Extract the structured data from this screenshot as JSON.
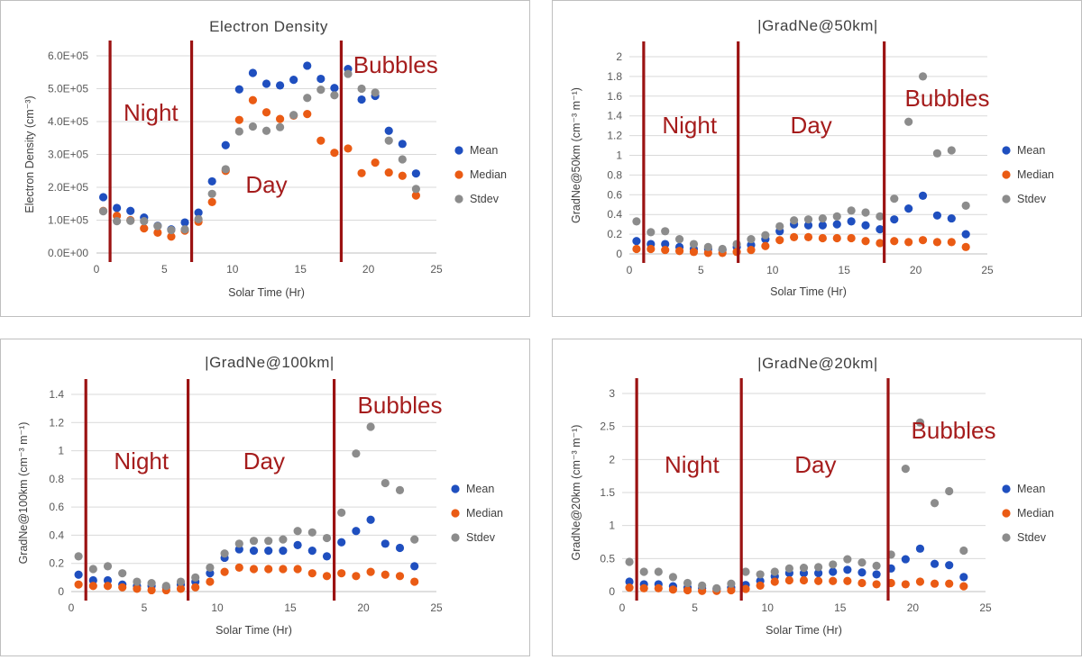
{
  "colors": {
    "mean": "#1f4fbf",
    "median": "#ea5b14",
    "stdev": "#8c8c8c",
    "divider": "#9b1212",
    "region": "#a51c1c",
    "grid": "#d9d9d9"
  },
  "chart_data": [
    {
      "type": "scatter",
      "title": "Electron Density",
      "xlabel": "Solar Time (Hr)",
      "ylabel": "Electron Density (cm⁻³)",
      "xlim": [
        0,
        25
      ],
      "ylim": [
        0,
        600000
      ],
      "xticks": [
        "0",
        "5",
        "10",
        "15",
        "20",
        "25"
      ],
      "yticks": [
        "0.0E+00",
        "1.0E+05",
        "2.0E+05",
        "3.0E+05",
        "4.0E+05",
        "5.0E+05",
        "6.0E+05"
      ],
      "dividers": [
        1,
        7,
        18
      ],
      "regions": [
        {
          "label": "Night",
          "x": 4
        },
        {
          "label": "Day",
          "x": 12.5
        },
        {
          "label": "Bubbles",
          "x": 22
        }
      ],
      "x": [
        0.5,
        1.5,
        2.5,
        3.5,
        4.5,
        5.5,
        6.5,
        7.5,
        8.5,
        9.5,
        10.5,
        11.5,
        12.5,
        13.5,
        14.5,
        15.5,
        16.5,
        17.5,
        18.5,
        19.5,
        20.5,
        21.5,
        22.5,
        23.5
      ],
      "series": [
        {
          "name": "Mean",
          "values": [
            170000,
            137000,
            128000,
            108000,
            83000,
            72000,
            93000,
            123000,
            218000,
            328000,
            498000,
            548000,
            515000,
            510000,
            527000,
            570000,
            530000,
            502000,
            560000,
            467000,
            478000,
            372000,
            332000,
            242000
          ]
        },
        {
          "name": "Median",
          "values": [
            128000,
            113000,
            100000,
            75000,
            62000,
            50000,
            68000,
            95000,
            155000,
            250000,
            405000,
            465000,
            428000,
            408000,
            418000,
            423000,
            342000,
            305000,
            318000,
            243000,
            275000,
            245000,
            235000,
            175000
          ]
        },
        {
          "name": "Stdev",
          "values": [
            127000,
            97000,
            98000,
            97000,
            82000,
            70000,
            72000,
            103000,
            180000,
            255000,
            370000,
            385000,
            372000,
            383000,
            420000,
            472000,
            497000,
            480000,
            545000,
            500000,
            488000,
            342000,
            285000,
            195000
          ]
        }
      ]
    },
    {
      "type": "scatter",
      "title": "|GradNe@50km|",
      "xlabel": "Solar Time (Hr)",
      "ylabel": "GradNe@50km (cm⁻³ m⁻¹)",
      "xlim": [
        0,
        25
      ],
      "ylim": [
        0,
        2
      ],
      "xticks": [
        "0",
        "5",
        "10",
        "15",
        "20",
        "25"
      ],
      "yticks": [
        "0",
        "0.2",
        "0.4",
        "0.6",
        "0.8",
        "1",
        "1.2",
        "1.4",
        "1.6",
        "1.8",
        "2"
      ],
      "dividers": [
        1,
        7.6,
        17.8
      ],
      "regions": [
        {
          "label": "Night",
          "x": 4.2
        },
        {
          "label": "Day",
          "x": 12.7
        },
        {
          "label": "Bubbles",
          "x": 22.2
        }
      ],
      "x": [
        0.5,
        1.5,
        2.5,
        3.5,
        4.5,
        5.5,
        6.5,
        7.5,
        8.5,
        9.5,
        10.5,
        11.5,
        12.5,
        13.5,
        14.5,
        15.5,
        16.5,
        17.5,
        18.5,
        19.5,
        20.5,
        21.5,
        22.5,
        23.5
      ],
      "series": [
        {
          "name": "Mean",
          "values": [
            0.13,
            0.1,
            0.1,
            0.07,
            0.05,
            0.05,
            0.04,
            0.07,
            0.09,
            0.15,
            0.23,
            0.3,
            0.29,
            0.29,
            0.3,
            0.33,
            0.29,
            0.25,
            0.35,
            0.46,
            0.59,
            0.39,
            0.36,
            0.2
          ]
        },
        {
          "name": "Median",
          "values": [
            0.05,
            0.05,
            0.04,
            0.03,
            0.02,
            0.01,
            0.01,
            0.02,
            0.04,
            0.08,
            0.14,
            0.17,
            0.17,
            0.16,
            0.16,
            0.16,
            0.13,
            0.11,
            0.13,
            0.12,
            0.14,
            0.12,
            0.12,
            0.07
          ]
        },
        {
          "name": "Stdev",
          "values": [
            0.33,
            0.22,
            0.23,
            0.15,
            0.1,
            0.07,
            0.05,
            0.1,
            0.15,
            0.19,
            0.28,
            0.34,
            0.35,
            0.36,
            0.38,
            0.44,
            0.42,
            0.38,
            0.56,
            1.34,
            1.8,
            1.02,
            1.05,
            0.49
          ]
        }
      ]
    },
    {
      "type": "scatter",
      "title": "|GradNe@100km|",
      "xlabel": "Solar Time (Hr)",
      "ylabel": "GradNe@100km (cm⁻³ m⁻¹)",
      "xlim": [
        0,
        25
      ],
      "ylim": [
        0,
        1.4
      ],
      "xticks": [
        "0",
        "5",
        "10",
        "15",
        "20",
        "25"
      ],
      "yticks": [
        "0",
        "0.2",
        "0.4",
        "0.6",
        "0.8",
        "1",
        "1.2",
        "1.4"
      ],
      "dividers": [
        1,
        8,
        18
      ],
      "regions": [
        {
          "label": "Night",
          "x": 4.8
        },
        {
          "label": "Day",
          "x": 13.2
        },
        {
          "label": "Bubbles",
          "x": 22.5
        }
      ],
      "x": [
        0.5,
        1.5,
        2.5,
        3.5,
        4.5,
        5.5,
        6.5,
        7.5,
        8.5,
        9.5,
        10.5,
        11.5,
        12.5,
        13.5,
        14.5,
        15.5,
        16.5,
        17.5,
        18.5,
        19.5,
        20.5,
        21.5,
        22.5,
        23.5
      ],
      "series": [
        {
          "name": "Mean",
          "values": [
            0.12,
            0.08,
            0.08,
            0.05,
            0.04,
            0.04,
            0.03,
            0.05,
            0.07,
            0.13,
            0.24,
            0.3,
            0.29,
            0.29,
            0.29,
            0.33,
            0.29,
            0.25,
            0.35,
            0.43,
            0.51,
            0.34,
            0.31,
            0.18
          ]
        },
        {
          "name": "Median",
          "values": [
            0.05,
            0.04,
            0.04,
            0.03,
            0.02,
            0.01,
            0.01,
            0.02,
            0.03,
            0.07,
            0.14,
            0.17,
            0.16,
            0.16,
            0.16,
            0.16,
            0.13,
            0.11,
            0.13,
            0.11,
            0.14,
            0.12,
            0.11,
            0.07
          ]
        },
        {
          "name": "Stdev",
          "values": [
            0.25,
            0.16,
            0.18,
            0.13,
            0.07,
            0.06,
            0.04,
            0.07,
            0.1,
            0.17,
            0.27,
            0.34,
            0.36,
            0.36,
            0.37,
            0.43,
            0.42,
            0.38,
            0.56,
            0.98,
            1.17,
            0.77,
            0.72,
            0.37
          ]
        }
      ]
    },
    {
      "type": "scatter",
      "title": "|GradNe@20km|",
      "xlabel": "Solar Time (Hr)",
      "ylabel": "GradNe@20km (cm⁻³ m⁻¹)",
      "xlim": [
        0,
        25
      ],
      "ylim": [
        0,
        3
      ],
      "xticks": [
        "0",
        "5",
        "10",
        "15",
        "20",
        "25"
      ],
      "yticks": [
        "0",
        "0.5",
        "1",
        "1.5",
        "2",
        "2.5",
        "3"
      ],
      "dividers": [
        1,
        8.2,
        18.3
      ],
      "regions": [
        {
          "label": "Night",
          "x": 4.8
        },
        {
          "label": "Day",
          "x": 13.3
        },
        {
          "label": "Bubbles",
          "x": 22.8
        }
      ],
      "x": [
        0.5,
        1.5,
        2.5,
        3.5,
        4.5,
        5.5,
        6.5,
        7.5,
        8.5,
        9.5,
        10.5,
        11.5,
        12.5,
        13.5,
        14.5,
        15.5,
        16.5,
        17.5,
        18.5,
        19.5,
        20.5,
        21.5,
        22.5,
        23.5
      ],
      "series": [
        {
          "name": "Mean",
          "values": [
            0.15,
            0.11,
            0.11,
            0.08,
            0.06,
            0.05,
            0.04,
            0.06,
            0.1,
            0.16,
            0.23,
            0.28,
            0.28,
            0.28,
            0.3,
            0.33,
            0.29,
            0.26,
            0.35,
            0.49,
            0.65,
            0.42,
            0.4,
            0.22
          ]
        },
        {
          "name": "Median",
          "values": [
            0.06,
            0.05,
            0.05,
            0.03,
            0.02,
            0.01,
            0.01,
            0.02,
            0.04,
            0.09,
            0.15,
            0.17,
            0.17,
            0.16,
            0.16,
            0.16,
            0.13,
            0.11,
            0.13,
            0.11,
            0.15,
            0.12,
            0.12,
            0.08
          ]
        },
        {
          "name": "Stdev",
          "values": [
            0.45,
            0.3,
            0.3,
            0.22,
            0.13,
            0.09,
            0.05,
            0.12,
            0.3,
            0.26,
            0.3,
            0.35,
            0.36,
            0.37,
            0.41,
            0.49,
            0.44,
            0.39,
            0.56,
            1.86,
            2.56,
            1.34,
            1.52,
            0.62
          ]
        }
      ]
    }
  ]
}
